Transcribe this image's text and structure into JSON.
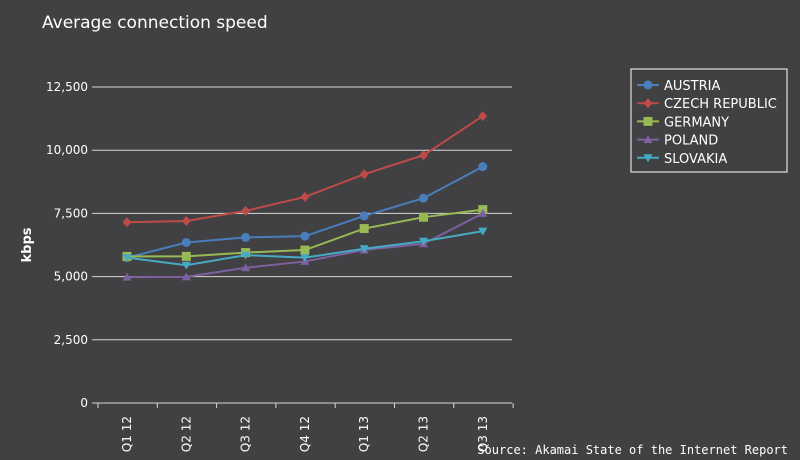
{
  "chart_data": {
    "type": "line",
    "title": "Average connection speed",
    "ylabel": "kbps",
    "xlabel": "",
    "ylim": [
      0,
      12500
    ],
    "yticks": [
      0,
      2500,
      5000,
      7500,
      10000,
      12500
    ],
    "ytick_labels": [
      "0",
      "2,500",
      "5,000",
      "7,500",
      "10,000",
      "12,500"
    ],
    "categories": [
      "Q1 12",
      "Q2 12",
      "Q3 12",
      "Q4 12",
      "Q1 13",
      "Q2 13",
      "Q3 13"
    ],
    "grid": "horizontal",
    "legend_position": "top-right",
    "source": "Source: Akamai State of the Internet Report",
    "series": [
      {
        "name": "AUSTRIA",
        "color": "#4a7ebb",
        "marker": "circle",
        "values": [
          5750,
          6350,
          6550,
          6600,
          7400,
          8100,
          9350
        ]
      },
      {
        "name": "CZECH REPUBLIC",
        "color": "#be4b48",
        "marker": "diamond",
        "values": [
          7150,
          7200,
          7600,
          8150,
          9050,
          9800,
          11350
        ]
      },
      {
        "name": "GERMANY",
        "color": "#98b954",
        "marker": "square",
        "values": [
          5800,
          5800,
          5950,
          6050,
          6900,
          7350,
          7650
        ]
      },
      {
        "name": "POLAND",
        "color": "#7d60a0",
        "marker": "triangle-up",
        "values": [
          4980,
          4990,
          5350,
          5600,
          6050,
          6300,
          7500
        ]
      },
      {
        "name": "SLOVAKIA",
        "color": "#46aac5",
        "marker": "triangle-down",
        "values": [
          5750,
          5450,
          5850,
          5750,
          6100,
          6400,
          6800
        ]
      }
    ]
  }
}
